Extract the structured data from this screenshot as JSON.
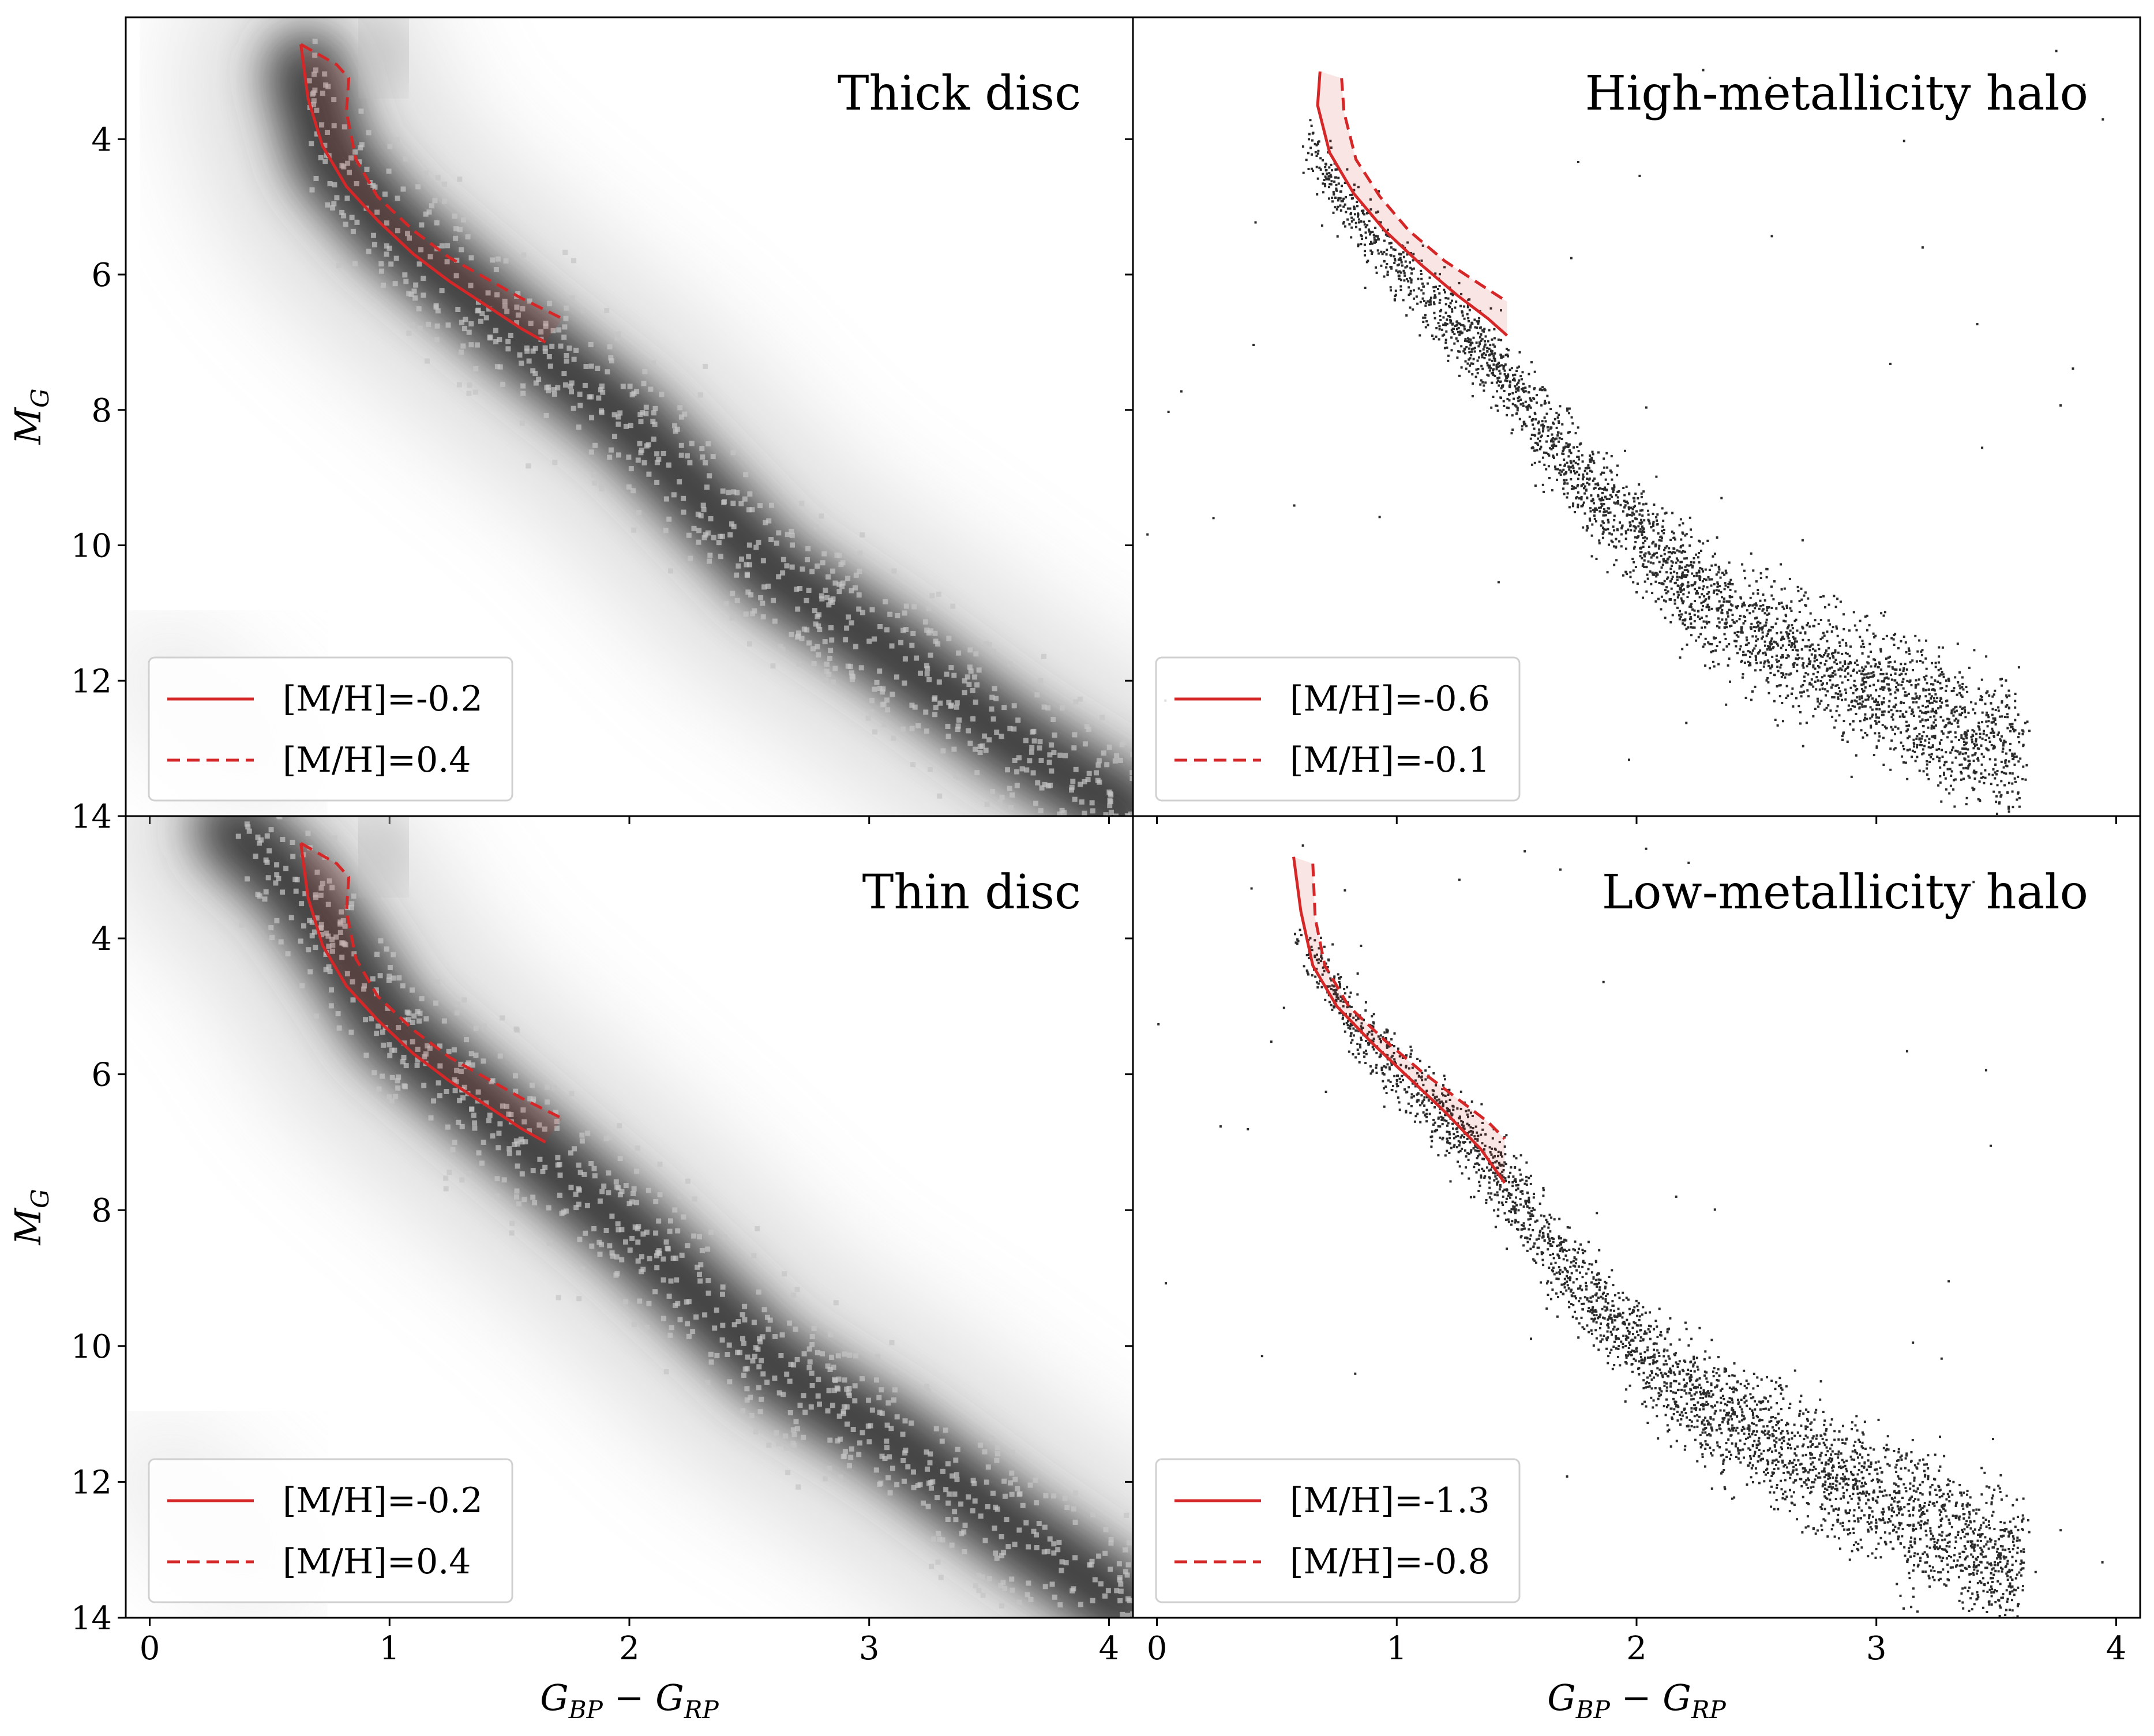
{
  "chart_data": [
    {
      "type": "scatter",
      "panel": "top-left",
      "title": "Thick disc",
      "xlabel": "",
      "ylabel": "M_G",
      "xlim": [
        -0.1,
        4.1
      ],
      "ylim": [
        14,
        2.2
      ],
      "xticks": [],
      "yticks": [
        4,
        6,
        8,
        10,
        12,
        14
      ],
      "rendering": "2d-histogram",
      "density_ridge": [
        [
          0.65,
          3.0
        ],
        [
          0.75,
          4.3
        ],
        [
          1.0,
          5.3
        ],
        [
          1.5,
          6.8
        ],
        [
          2.0,
          8.2
        ],
        [
          2.6,
          10.4
        ],
        [
          3.1,
          11.6
        ],
        [
          3.6,
          12.9
        ],
        [
          4.1,
          14.0
        ]
      ],
      "series": [
        {
          "name": "[M/H]=-0.2",
          "style": "solid",
          "color": "#d62728",
          "x": [
            0.63,
            0.66,
            0.72,
            0.82,
            0.95,
            1.1,
            1.25,
            1.4,
            1.55,
            1.65
          ],
          "y": [
            2.6,
            3.4,
            4.1,
            4.7,
            5.2,
            5.7,
            6.1,
            6.45,
            6.8,
            7.0
          ]
        },
        {
          "name": "[M/H]=0.4",
          "style": "dashed",
          "color": "#d62728",
          "x": [
            0.63,
            0.78,
            0.83,
            0.82,
            0.86,
            0.95,
            1.1,
            1.25,
            1.4,
            1.55,
            1.72
          ],
          "y": [
            2.6,
            2.9,
            3.1,
            3.6,
            4.3,
            4.85,
            5.35,
            5.75,
            6.05,
            6.35,
            6.65
          ]
        }
      ],
      "legend_position": "lower-left"
    },
    {
      "type": "scatter",
      "panel": "top-right",
      "title": "High-metallicity halo",
      "xlabel": "",
      "ylabel": "",
      "xlim": [
        -0.1,
        4.1
      ],
      "ylim": [
        14,
        2.2
      ],
      "xticks": [],
      "yticks": [],
      "rendering": "sparse-scatter",
      "density_ridge": [
        [
          0.6,
          4.0
        ],
        [
          0.9,
          5.5
        ],
        [
          1.4,
          7.3
        ],
        [
          1.8,
          9.2
        ],
        [
          2.2,
          10.6
        ],
        [
          2.7,
          11.7
        ],
        [
          3.1,
          12.3
        ],
        [
          3.6,
          13.2
        ]
      ],
      "series": [
        {
          "name": "[M/H]=-0.6",
          "style": "solid",
          "color": "#d62728",
          "x": [
            0.68,
            0.67,
            0.72,
            0.82,
            0.95,
            1.1,
            1.25,
            1.38,
            1.46
          ],
          "y": [
            3.0,
            3.5,
            4.2,
            4.8,
            5.35,
            5.85,
            6.3,
            6.65,
            6.9
          ]
        },
        {
          "name": "[M/H]=-0.1",
          "style": "dashed",
          "color": "#d62728",
          "x": [
            0.77,
            0.78,
            0.83,
            0.93,
            1.05,
            1.2,
            1.35,
            1.46
          ],
          "y": [
            3.1,
            3.6,
            4.3,
            4.85,
            5.35,
            5.8,
            6.15,
            6.4
          ]
        }
      ],
      "legend_position": "lower-left"
    },
    {
      "type": "scatter",
      "panel": "bottom-left",
      "title": "Thin disc",
      "xlabel": "G_BP − G_RP",
      "ylabel": "M_G",
      "xlim": [
        -0.1,
        4.1
      ],
      "ylim": [
        14,
        2.2
      ],
      "xticks": [
        0,
        1,
        2,
        3,
        4
      ],
      "yticks": [
        4,
        6,
        8,
        10,
        12,
        14
      ],
      "rendering": "2d-histogram",
      "density_ridge": [
        [
          0.35,
          2.4
        ],
        [
          0.6,
          3.2
        ],
        [
          0.8,
          4.2
        ],
        [
          1.0,
          5.3
        ],
        [
          1.5,
          6.8
        ],
        [
          2.0,
          8.3
        ],
        [
          2.6,
          10.3
        ],
        [
          3.1,
          11.4
        ],
        [
          3.6,
          12.7
        ],
        [
          4.1,
          13.9
        ]
      ],
      "series": [
        {
          "name": "[M/H]=-0.2",
          "style": "solid",
          "color": "#d62728",
          "x": [
            0.63,
            0.66,
            0.72,
            0.82,
            0.95,
            1.1,
            1.25,
            1.4,
            1.55,
            1.65
          ],
          "y": [
            2.6,
            3.4,
            4.1,
            4.7,
            5.2,
            5.7,
            6.1,
            6.45,
            6.8,
            7.0
          ]
        },
        {
          "name": "[M/H]=0.4",
          "style": "dashed",
          "color": "#d62728",
          "x": [
            0.63,
            0.78,
            0.83,
            0.82,
            0.86,
            0.95,
            1.1,
            1.25,
            1.4,
            1.55,
            1.72
          ],
          "y": [
            2.6,
            2.9,
            3.1,
            3.6,
            4.3,
            4.85,
            5.35,
            5.75,
            6.05,
            6.35,
            6.65
          ]
        }
      ],
      "legend_position": "lower-left"
    },
    {
      "type": "scatter",
      "panel": "bottom-right",
      "title": "Low-metallicity halo",
      "xlabel": "G_BP − G_RP",
      "ylabel": "",
      "xlim": [
        -0.1,
        4.1
      ],
      "ylim": [
        14,
        2.2
      ],
      "xticks": [
        0,
        1,
        2,
        3,
        4
      ],
      "yticks": [],
      "rendering": "sparse-scatter",
      "density_ridge": [
        [
          0.6,
          4.0
        ],
        [
          0.9,
          5.6
        ],
        [
          1.4,
          7.4
        ],
        [
          1.8,
          9.3
        ],
        [
          2.2,
          10.7
        ],
        [
          2.7,
          11.7
        ],
        [
          3.1,
          12.4
        ],
        [
          3.6,
          13.3
        ]
      ],
      "series": [
        {
          "name": "[M/H]=-1.3",
          "style": "solid",
          "color": "#d62728",
          "x": [
            0.57,
            0.6,
            0.65,
            0.75,
            0.9,
            1.05,
            1.2,
            1.35,
            1.45
          ],
          "y": [
            2.8,
            3.6,
            4.4,
            5.0,
            5.55,
            6.05,
            6.55,
            7.1,
            7.6
          ]
        },
        {
          "name": "[M/H]=-0.8",
          "style": "dashed",
          "color": "#d62728",
          "x": [
            0.65,
            0.66,
            0.7,
            0.8,
            0.95,
            1.1,
            1.25,
            1.38,
            1.45
          ],
          "y": [
            2.9,
            3.7,
            4.4,
            5.0,
            5.5,
            5.95,
            6.35,
            6.7,
            6.95
          ]
        }
      ],
      "legend_position": "lower-left"
    }
  ],
  "colors": {
    "isochrone": "#d62728",
    "band_fill": "#d6272824",
    "density": "#000000"
  }
}
